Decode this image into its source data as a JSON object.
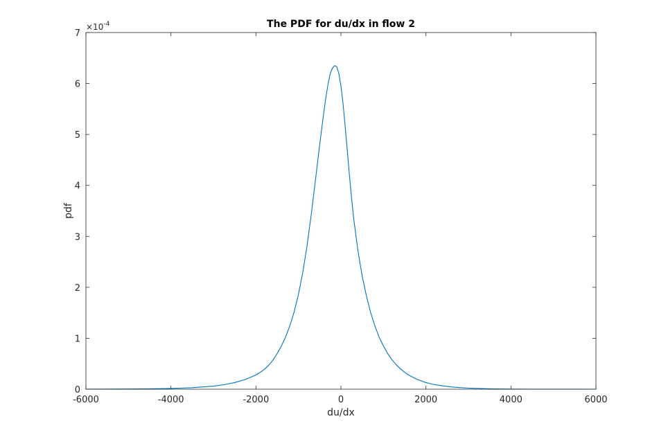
{
  "chart_data": {
    "type": "line",
    "title": "The PDF for du/dx in flow 2",
    "xlabel": "du/dx",
    "ylabel": "pdf",
    "xlim": [
      -6000,
      6000
    ],
    "ylim": [
      0,
      7
    ],
    "y_multiplier": "×10",
    "y_exponent": "-4",
    "xticks": [
      "-6000",
      "-4000",
      "-2000",
      "0",
      "2000",
      "4000",
      "6000"
    ],
    "yticks": [
      "0",
      "1",
      "2",
      "3",
      "4",
      "5",
      "6",
      "7"
    ],
    "grid": false,
    "line_color": "#0072BD",
    "series": [
      {
        "x": [
          -6000,
          -5500,
          -5000,
          -4500,
          -4000,
          -3500,
          -3000,
          -2750,
          -2500,
          -2250,
          -2000,
          -1900,
          -1800,
          -1700,
          -1600,
          -1500,
          -1400,
          -1300,
          -1200,
          -1100,
          -1000,
          -900,
          -800,
          -700,
          -600,
          -500,
          -400,
          -350,
          -300,
          -250,
          -200,
          -150,
          -100,
          -50,
          0,
          50,
          100,
          150,
          200,
          250,
          300,
          400,
          500,
          600,
          700,
          800,
          900,
          1000,
          1100,
          1200,
          1300,
          1400,
          1500,
          1600,
          1800,
          2000,
          2200,
          2400,
          2600,
          2800,
          3000,
          3500,
          4000,
          4500,
          5000,
          5500,
          6000
        ],
        "y": [
          0.001,
          0.002,
          0.004,
          0.008,
          0.015,
          0.03,
          0.06,
          0.09,
          0.13,
          0.19,
          0.28,
          0.33,
          0.39,
          0.47,
          0.57,
          0.7,
          0.85,
          1.03,
          1.25,
          1.52,
          1.86,
          2.28,
          2.8,
          3.42,
          4.1,
          4.8,
          5.45,
          5.75,
          6.0,
          6.2,
          6.3,
          6.35,
          6.33,
          6.2,
          5.95,
          5.6,
          5.15,
          4.68,
          4.2,
          3.75,
          3.35,
          2.72,
          2.22,
          1.83,
          1.5,
          1.24,
          1.02,
          0.85,
          0.7,
          0.58,
          0.48,
          0.4,
          0.33,
          0.275,
          0.19,
          0.13,
          0.09,
          0.065,
          0.045,
          0.032,
          0.022,
          0.008,
          0.003,
          0.0015,
          0.0008,
          0.0004,
          0.0002
        ]
      }
    ]
  }
}
